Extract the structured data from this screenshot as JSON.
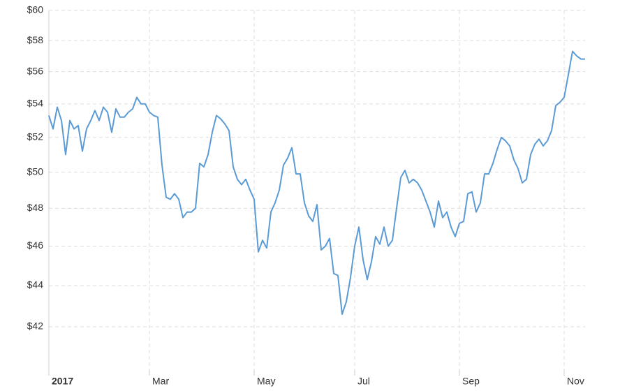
{
  "chart_data": {
    "type": "line",
    "categories": [
      "2017",
      null,
      null,
      null,
      null,
      null,
      null,
      null,
      null,
      null,
      null,
      null,
      null,
      null,
      null,
      null,
      null,
      null,
      null,
      null,
      null,
      null,
      null,
      null,
      "Mar",
      null,
      null,
      null,
      null,
      null,
      null,
      null,
      null,
      null,
      null,
      null,
      null,
      null,
      null,
      null,
      null,
      null,
      null,
      null,
      null,
      null,
      null,
      null,
      null,
      "May",
      null,
      null,
      null,
      null,
      null,
      null,
      null,
      null,
      null,
      null,
      null,
      null,
      null,
      null,
      null,
      null,
      null,
      null,
      null,
      null,
      null,
      null,
      null,
      "Jul",
      null,
      null,
      null,
      null,
      null,
      null,
      null,
      null,
      null,
      null,
      null,
      null,
      null,
      null,
      null,
      null,
      null,
      null,
      null,
      null,
      null,
      null,
      null,
      null,
      "Sep",
      null,
      null,
      null,
      null,
      null,
      null,
      null,
      null,
      null,
      null,
      null,
      null,
      null,
      null,
      null,
      null,
      null,
      null,
      null,
      null,
      null,
      null,
      null,
      null,
      "Nov",
      null,
      null,
      null,
      null,
      null
    ],
    "values": [
      53.3,
      52.5,
      53.8,
      53.0,
      51.0,
      53.0,
      52.5,
      52.7,
      51.2,
      52.5,
      53.0,
      53.6,
      53.0,
      53.8,
      53.5,
      52.3,
      53.7,
      53.2,
      53.2,
      53.5,
      53.7,
      54.4,
      54.0,
      54.0,
      53.5,
      53.3,
      53.2,
      50.4,
      48.6,
      48.5,
      48.8,
      48.5,
      47.5,
      47.8,
      47.8,
      48.0,
      50.5,
      50.3,
      51.0,
      52.3,
      53.3,
      53.1,
      52.8,
      52.4,
      50.3,
      49.6,
      49.3,
      49.6,
      49.0,
      48.5,
      45.7,
      46.3,
      45.9,
      47.8,
      48.3,
      49.0,
      50.4,
      50.8,
      51.4,
      49.9,
      49.9,
      48.3,
      47.6,
      47.3,
      48.2,
      45.8,
      46.0,
      46.4,
      44.6,
      44.5,
      42.6,
      43.2,
      44.4,
      46.0,
      47.0,
      45.3,
      44.3,
      45.2,
      46.5,
      46.1,
      47.0,
      46.0,
      46.3,
      48.0,
      49.7,
      50.1,
      49.4,
      49.6,
      49.4,
      49.0,
      48.4,
      47.8,
      47.0,
      48.4,
      47.5,
      47.8,
      47.0,
      46.5,
      47.2,
      47.3,
      48.8,
      48.9,
      47.8,
      48.3,
      49.9,
      49.9,
      50.5,
      51.3,
      52.0,
      51.8,
      51.5,
      50.7,
      50.2,
      49.4,
      49.6,
      51.0,
      51.6,
      51.9,
      51.5,
      51.8,
      52.4,
      53.9,
      54.1,
      54.4,
      55.8,
      57.3,
      57.0,
      56.8,
      56.8
    ],
    "color": "#5b9bd5",
    "ylim": [
      40,
      60
    ],
    "yticks": [
      {
        "value": 42,
        "label": "$42"
      },
      {
        "value": 44,
        "label": "$44"
      },
      {
        "value": 46,
        "label": "$46"
      },
      {
        "value": 48,
        "label": "$48"
      },
      {
        "value": 50,
        "label": "$50"
      },
      {
        "value": 52,
        "label": "$52"
      },
      {
        "value": 54,
        "label": "$54"
      },
      {
        "value": 56,
        "label": "$56"
      },
      {
        "value": 58,
        "label": "$58"
      },
      {
        "value": 60,
        "label": "$60"
      }
    ],
    "log_scale": true,
    "grid": true
  }
}
